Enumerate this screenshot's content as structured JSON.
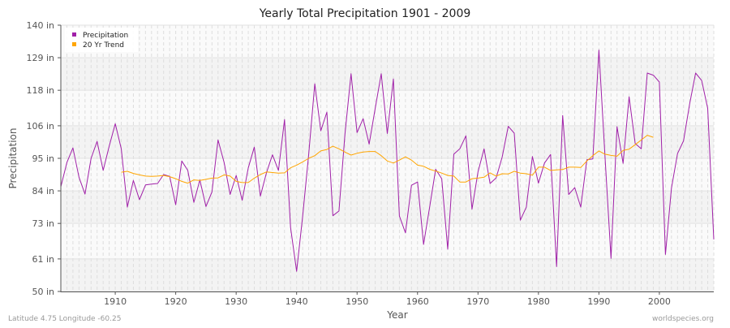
{
  "chart_data": {
    "type": "line",
    "title": "Yearly Total Precipitation 1901 - 2009",
    "xlabel": "Year",
    "ylabel": "Precipitation",
    "xlim": [
      1901,
      2009
    ],
    "ylim": [
      50,
      140
    ],
    "x_ticks": [
      1910,
      1920,
      1930,
      1940,
      1950,
      1960,
      1970,
      1980,
      1990,
      2000
    ],
    "y_ticks": [
      50,
      61,
      73,
      84,
      95,
      106,
      118,
      129,
      140
    ],
    "y_tick_labels": [
      "50 in",
      "61 in",
      "73 in",
      "84 in",
      "95 in",
      "106 in",
      "118 in",
      "129 in",
      "140 in"
    ],
    "grid": true,
    "legend_position": "top-left",
    "series": [
      {
        "name": "Precipitation",
        "color": "#a020a8",
        "x_start": 1901,
        "values": [
          85.4,
          93.6,
          98.5,
          88.6,
          82.9,
          95.0,
          100.7,
          90.9,
          99.1,
          106.7,
          98.2,
          78.5,
          87.5,
          81.0,
          86.0,
          86.3,
          86.5,
          89.5,
          88.9,
          79.3,
          94.1,
          90.9,
          80.1,
          87.7,
          78.7,
          83.6,
          101.2,
          93.6,
          82.8,
          89.2,
          80.8,
          91.8,
          98.8,
          82.2,
          90.0,
          96.2,
          90.9,
          108.1,
          71.7,
          56.8,
          75.3,
          96.4,
          120.2,
          104.3,
          110.6,
          75.6,
          77.2,
          103.2,
          123.6,
          103.7,
          108.4,
          99.8,
          111.9,
          123.6,
          103.4,
          121.8,
          75.5,
          69.8,
          85.9,
          87.0,
          65.9,
          78.5,
          91.3,
          88.1,
          64.3,
          96.4,
          98.2,
          102.6,
          77.8,
          90.4,
          98.2,
          86.5,
          88.4,
          95.4,
          105.8,
          103.5,
          74.1,
          78.5,
          95.6,
          86.6,
          93.4,
          96.3,
          58.4,
          109.5,
          82.8,
          85.1,
          78.5,
          94.5,
          94.8,
          131.6,
          96.0,
          61.2,
          105.7,
          93.3,
          115.8,
          100.0,
          98.2,
          123.8,
          123.1,
          120.8,
          62.5,
          84.9,
          96.6,
          100.9,
          113.3,
          123.8,
          121.3,
          111.9,
          67.6
        ]
      },
      {
        "name": "20 Yr Trend",
        "color": "#ffa500",
        "x_start": 1911,
        "values": [
          90.3,
          90.6,
          89.9,
          89.4,
          89.0,
          88.9,
          89.0,
          89.2,
          88.8,
          88.1,
          87.2,
          86.6,
          87.7,
          87.5,
          87.9,
          88.3,
          88.4,
          89.4,
          89.0,
          87.2,
          86.8,
          86.8,
          88.3,
          89.5,
          90.4,
          90.2,
          90.0,
          90.1,
          91.8,
          92.7,
          93.8,
          95.0,
          95.9,
          97.5,
          98.0,
          99.1,
          98.2,
          97.1,
          96.1,
          96.7,
          97.1,
          97.3,
          97.3,
          95.9,
          94.1,
          93.4,
          94.4,
          95.5,
          94.4,
          92.7,
          92.3,
          91.3,
          90.7,
          90.0,
          89.2,
          89.0,
          87.0,
          87.0,
          88.1,
          88.3,
          88.6,
          90.1,
          89.0,
          89.8,
          89.7,
          90.6,
          90.0,
          89.8,
          89.3,
          92.0,
          92.0,
          90.9,
          91.1,
          91.2,
          92.0,
          92.0,
          91.9,
          94.1,
          95.9,
          97.5,
          96.4,
          96.0,
          95.7,
          97.7,
          98.1,
          99.6,
          101.2,
          102.8,
          102.1
        ]
      }
    ]
  },
  "footer": {
    "location": "Latitude 4.75 Longitude -60.25",
    "source": "worldspecies.org"
  }
}
